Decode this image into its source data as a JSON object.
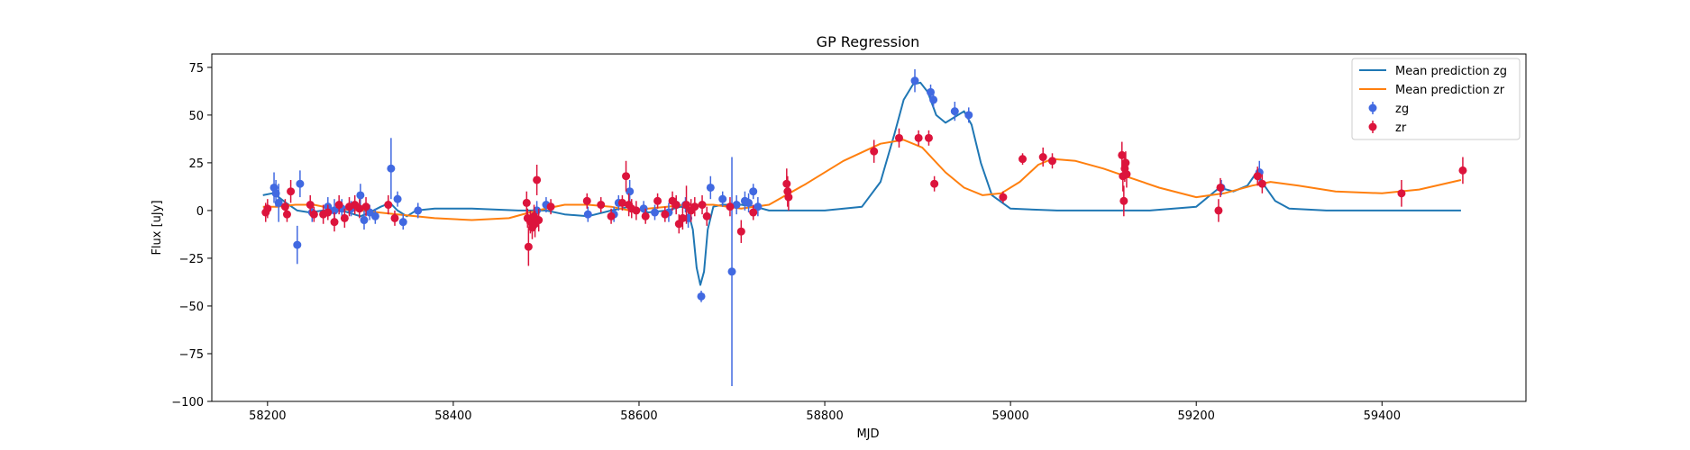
{
  "chart_data": {
    "type": "scatter",
    "title": "GP Regression",
    "xlabel": "MJD",
    "ylabel": "Flux [uJy]",
    "xlim": [
      58140,
      59555
    ],
    "ylim": [
      -100,
      82
    ],
    "xticks": [
      58200,
      58400,
      58600,
      58800,
      59000,
      59200,
      59400
    ],
    "yticks": [
      -100,
      -75,
      -50,
      -25,
      0,
      25,
      50,
      75
    ],
    "grid": false,
    "legend_position": "top-right",
    "series": [
      {
        "name": "Mean prediction zg",
        "kind": "line",
        "color": "#1f77b4",
        "points": [
          [
            58195,
            8
          ],
          [
            58205,
            9
          ],
          [
            58212,
            7
          ],
          [
            58220,
            4
          ],
          [
            58232,
            0
          ],
          [
            58245,
            -1
          ],
          [
            58260,
            0
          ],
          [
            58280,
            0
          ],
          [
            58300,
            -3
          ],
          [
            58310,
            -1
          ],
          [
            58322,
            2
          ],
          [
            58332,
            4
          ],
          [
            58340,
            0
          ],
          [
            58350,
            -3
          ],
          [
            58360,
            0
          ],
          [
            58380,
            1
          ],
          [
            58420,
            1
          ],
          [
            58470,
            0
          ],
          [
            58500,
            0
          ],
          [
            58520,
            -2
          ],
          [
            58545,
            -3
          ],
          [
            58570,
            0
          ],
          [
            58590,
            2
          ],
          [
            58610,
            -1
          ],
          [
            58630,
            0
          ],
          [
            58645,
            2
          ],
          [
            58652,
            1
          ],
          [
            58658,
            -10
          ],
          [
            58662,
            -30
          ],
          [
            58666,
            -39
          ],
          [
            58670,
            -32
          ],
          [
            58674,
            -10
          ],
          [
            58680,
            2
          ],
          [
            58690,
            3
          ],
          [
            58710,
            3
          ],
          [
            58725,
            2
          ],
          [
            58740,
            0
          ],
          [
            58760,
            0
          ],
          [
            58800,
            0
          ],
          [
            58840,
            2
          ],
          [
            58860,
            15
          ],
          [
            58875,
            40
          ],
          [
            58885,
            58
          ],
          [
            58895,
            66
          ],
          [
            58903,
            67
          ],
          [
            58911,
            62
          ],
          [
            58920,
            50
          ],
          [
            58930,
            46
          ],
          [
            58940,
            49
          ],
          [
            58950,
            52
          ],
          [
            58958,
            45
          ],
          [
            58968,
            25
          ],
          [
            58980,
            8
          ],
          [
            59000,
            1
          ],
          [
            59050,
            0
          ],
          [
            59150,
            0
          ],
          [
            59200,
            2
          ],
          [
            59215,
            8
          ],
          [
            59225,
            12
          ],
          [
            59240,
            10
          ],
          [
            59255,
            13
          ],
          [
            59265,
            20
          ],
          [
            59272,
            14
          ],
          [
            59285,
            5
          ],
          [
            59300,
            1
          ],
          [
            59340,
            0
          ],
          [
            59400,
            0
          ],
          [
            59485,
            0
          ]
        ]
      },
      {
        "name": "Mean prediction zr",
        "kind": "line",
        "color": "#ff7f0e",
        "points": [
          [
            58195,
            2
          ],
          [
            58210,
            2
          ],
          [
            58230,
            3
          ],
          [
            58250,
            3
          ],
          [
            58270,
            1
          ],
          [
            58300,
            0
          ],
          [
            58340,
            -2
          ],
          [
            58380,
            -4
          ],
          [
            58420,
            -5
          ],
          [
            58460,
            -4
          ],
          [
            58490,
            0
          ],
          [
            58520,
            3
          ],
          [
            58545,
            3
          ],
          [
            58570,
            2
          ],
          [
            58590,
            0
          ],
          [
            58610,
            1
          ],
          [
            58630,
            2
          ],
          [
            58650,
            3
          ],
          [
            58680,
            3
          ],
          [
            58710,
            1
          ],
          [
            58740,
            3
          ],
          [
            58780,
            14
          ],
          [
            58820,
            26
          ],
          [
            58860,
            35
          ],
          [
            58885,
            37
          ],
          [
            58905,
            33
          ],
          [
            58930,
            20
          ],
          [
            58950,
            12
          ],
          [
            58970,
            8
          ],
          [
            58990,
            9
          ],
          [
            59010,
            15
          ],
          [
            59030,
            24
          ],
          [
            59045,
            27
          ],
          [
            59070,
            26
          ],
          [
            59100,
            22
          ],
          [
            59130,
            17
          ],
          [
            59160,
            12
          ],
          [
            59200,
            7
          ],
          [
            59230,
            9
          ],
          [
            59260,
            13
          ],
          [
            59280,
            15
          ],
          [
            59310,
            13
          ],
          [
            59350,
            10
          ],
          [
            59400,
            9
          ],
          [
            59440,
            11
          ],
          [
            59485,
            16
          ]
        ]
      },
      {
        "name": "zg",
        "kind": "errorbar",
        "color": "#4169e1",
        "points": [
          [
            58207,
            12,
            8
          ],
          [
            58209,
            9,
            7
          ],
          [
            58212,
            4,
            10
          ],
          [
            58232,
            -18,
            10
          ],
          [
            58235,
            14,
            7
          ],
          [
            58248,
            -1,
            5
          ],
          [
            58265,
            2,
            5
          ],
          [
            58272,
            0,
            6
          ],
          [
            58280,
            1,
            5
          ],
          [
            58290,
            1,
            4
          ],
          [
            58300,
            8,
            6
          ],
          [
            58304,
            -5,
            5
          ],
          [
            58310,
            -1,
            4
          ],
          [
            58316,
            -3,
            4
          ],
          [
            58333,
            22,
            16
          ],
          [
            58340,
            6,
            4
          ],
          [
            58346,
            -6,
            4
          ],
          [
            58362,
            0,
            4
          ],
          [
            58490,
            0,
            5
          ],
          [
            58500,
            3,
            4
          ],
          [
            58545,
            -2,
            4
          ],
          [
            58573,
            -2,
            4
          ],
          [
            58578,
            4,
            4
          ],
          [
            58590,
            10,
            6
          ],
          [
            58605,
            1,
            4
          ],
          [
            58617,
            -1,
            4
          ],
          [
            58632,
            -1,
            5
          ],
          [
            58640,
            3,
            4
          ],
          [
            58650,
            3,
            4
          ],
          [
            58653,
            -4,
            5
          ],
          [
            58667,
            -45,
            3
          ],
          [
            58677,
            12,
            6
          ],
          [
            58690,
            6,
            4
          ],
          [
            58700,
            -32,
            60
          ],
          [
            58705,
            3,
            5
          ],
          [
            58714,
            5,
            5
          ],
          [
            58718,
            4,
            5
          ],
          [
            58723,
            10,
            4
          ],
          [
            58728,
            2,
            5
          ],
          [
            58897,
            68,
            6
          ],
          [
            58914,
            62,
            4
          ],
          [
            58917,
            58,
            4
          ],
          [
            58940,
            52,
            5
          ],
          [
            58955,
            50,
            4
          ],
          [
            59227,
            12,
            4
          ],
          [
            59268,
            20,
            6
          ]
        ]
      },
      {
        "name": "zr",
        "kind": "errorbar",
        "color": "#dc143c",
        "points": [
          [
            58198,
            -1,
            5
          ],
          [
            58200,
            1,
            5
          ],
          [
            58219,
            2,
            4
          ],
          [
            58221,
            -2,
            4
          ],
          [
            58225,
            10,
            6
          ],
          [
            58246,
            3,
            5
          ],
          [
            58250,
            -2,
            4
          ],
          [
            58260,
            -2,
            5
          ],
          [
            58265,
            -1,
            4
          ],
          [
            58272,
            -6,
            5
          ],
          [
            58277,
            3,
            5
          ],
          [
            58283,
            -4,
            5
          ],
          [
            58288,
            2,
            5
          ],
          [
            58294,
            3,
            5
          ],
          [
            58299,
            1,
            5
          ],
          [
            58306,
            2,
            5
          ],
          [
            58330,
            3,
            5
          ],
          [
            58337,
            -4,
            4
          ],
          [
            58479,
            4,
            6
          ],
          [
            58480,
            -4,
            5
          ],
          [
            58481,
            -19,
            10
          ],
          [
            58483,
            -6,
            6
          ],
          [
            58485,
            -9,
            6
          ],
          [
            58487,
            -3,
            6
          ],
          [
            58488,
            -7,
            7
          ],
          [
            58490,
            16,
            8
          ],
          [
            58492,
            -5,
            6
          ],
          [
            58505,
            2,
            4
          ],
          [
            58544,
            5,
            4
          ],
          [
            58559,
            3,
            4
          ],
          [
            58570,
            -3,
            4
          ],
          [
            58582,
            4,
            4
          ],
          [
            58586,
            18,
            8
          ],
          [
            58589,
            3,
            6
          ],
          [
            58592,
            1,
            5
          ],
          [
            58597,
            0,
            5
          ],
          [
            58607,
            -3,
            4
          ],
          [
            58620,
            5,
            4
          ],
          [
            58628,
            -2,
            4
          ],
          [
            58636,
            5,
            5
          ],
          [
            58640,
            3,
            5
          ],
          [
            58643,
            -7,
            5
          ],
          [
            58647,
            -4,
            6
          ],
          [
            58651,
            3,
            10
          ],
          [
            58656,
            0,
            6
          ],
          [
            58660,
            2,
            5
          ],
          [
            58668,
            3,
            5
          ],
          [
            58673,
            -3,
            5
          ],
          [
            58698,
            2,
            5
          ],
          [
            58710,
            -11,
            6
          ],
          [
            58723,
            -1,
            4
          ],
          [
            58759,
            14,
            8
          ],
          [
            58760,
            10,
            8
          ],
          [
            58761,
            7,
            7
          ],
          [
            58853,
            31,
            6
          ],
          [
            58880,
            38,
            5
          ],
          [
            58901,
            38,
            4
          ],
          [
            58912,
            38,
            4
          ],
          [
            58918,
            14,
            4
          ],
          [
            58992,
            7,
            3
          ],
          [
            59013,
            27,
            3
          ],
          [
            59035,
            28,
            5
          ],
          [
            59045,
            26,
            4
          ],
          [
            59120,
            29,
            7
          ],
          [
            59121,
            18,
            8
          ],
          [
            59122,
            5,
            8
          ],
          [
            59123,
            22,
            7
          ],
          [
            59124,
            25,
            6
          ],
          [
            59125,
            19,
            7
          ],
          [
            59224,
            0,
            6
          ],
          [
            59226,
            12,
            5
          ],
          [
            59266,
            18,
            5
          ],
          [
            59271,
            14,
            5
          ],
          [
            59421,
            9,
            7
          ],
          [
            59487,
            21,
            7
          ]
        ]
      }
    ]
  }
}
